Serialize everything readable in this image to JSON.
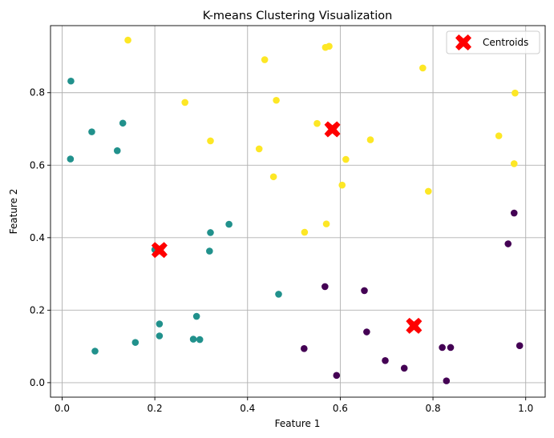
{
  "chart_data": {
    "type": "scatter",
    "title": "K-means Clustering Visualization",
    "xlabel": "Feature 1",
    "ylabel": "Feature 2",
    "xlim": [
      -0.025,
      1.042
    ],
    "ylim": [
      -0.04,
      0.985
    ],
    "xticks": [
      0.0,
      0.2,
      0.4,
      0.6,
      0.8,
      1.0
    ],
    "xtick_labels": [
      "0.0",
      "0.2",
      "0.4",
      "0.6",
      "0.8",
      "1.0"
    ],
    "yticks": [
      0.0,
      0.2,
      0.4,
      0.6,
      0.8
    ],
    "ytick_labels": [
      "0.0",
      "0.2",
      "0.4",
      "0.6",
      "0.8"
    ],
    "grid": true,
    "legend": {
      "position": "top-right",
      "entries": [
        "Centroids"
      ]
    },
    "colors": {
      "cluster_purple": "#440154",
      "cluster_teal": "#21918c",
      "cluster_yellow": "#fde725",
      "centroid": "#ff0000",
      "grid": "#b0b0b0"
    },
    "series": [
      {
        "color": "#440154",
        "points": [
          [
            0.975,
            0.468
          ],
          [
            0.962,
            0.383
          ],
          [
            0.567,
            0.265
          ],
          [
            0.652,
            0.254
          ],
          [
            0.657,
            0.14
          ],
          [
            0.522,
            0.094
          ],
          [
            0.697,
            0.061
          ],
          [
            0.738,
            0.04
          ],
          [
            0.82,
            0.097
          ],
          [
            0.838,
            0.097
          ],
          [
            0.987,
            0.102
          ],
          [
            0.592,
            0.02
          ],
          [
            0.829,
            0.005
          ]
        ]
      },
      {
        "color": "#21918c",
        "points": [
          [
            0.019,
            0.832
          ],
          [
            0.064,
            0.692
          ],
          [
            0.131,
            0.716
          ],
          [
            0.119,
            0.64
          ],
          [
            0.018,
            0.617
          ],
          [
            0.36,
            0.437
          ],
          [
            0.32,
            0.414
          ],
          [
            0.318,
            0.363
          ],
          [
            0.2,
            0.367
          ],
          [
            0.467,
            0.244
          ],
          [
            0.29,
            0.183
          ],
          [
            0.21,
            0.162
          ],
          [
            0.21,
            0.129
          ],
          [
            0.158,
            0.111
          ],
          [
            0.071,
            0.087
          ],
          [
            0.283,
            0.12
          ],
          [
            0.297,
            0.119
          ]
        ]
      },
      {
        "color": "#fde725",
        "points": [
          [
            0.142,
            0.945
          ],
          [
            0.437,
            0.891
          ],
          [
            0.568,
            0.925
          ],
          [
            0.576,
            0.928
          ],
          [
            0.778,
            0.868
          ],
          [
            0.977,
            0.799
          ],
          [
            0.265,
            0.773
          ],
          [
            0.462,
            0.779
          ],
          [
            0.55,
            0.715
          ],
          [
            0.665,
            0.67
          ],
          [
            0.32,
            0.667
          ],
          [
            0.942,
            0.681
          ],
          [
            0.425,
            0.645
          ],
          [
            0.612,
            0.616
          ],
          [
            0.975,
            0.604
          ],
          [
            0.456,
            0.568
          ],
          [
            0.604,
            0.545
          ],
          [
            0.79,
            0.528
          ],
          [
            0.57,
            0.438
          ],
          [
            0.523,
            0.415
          ]
        ]
      }
    ],
    "centroids": {
      "name": "Centroids",
      "points": [
        [
          0.583,
          0.699
        ],
        [
          0.21,
          0.366
        ],
        [
          0.759,
          0.157
        ]
      ]
    }
  }
}
